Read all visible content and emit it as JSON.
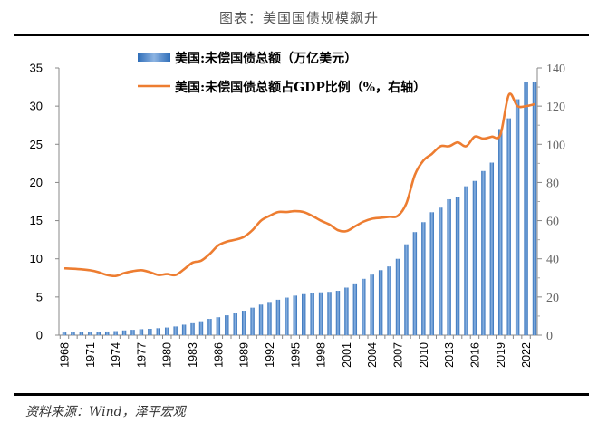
{
  "title": "图表：美国国债规模飙升",
  "source": "资料来源：Wind，泽平宏观",
  "chart_data": {
    "type": "bar+line",
    "x": [
      1968,
      1969,
      1970,
      1971,
      1972,
      1973,
      1974,
      1975,
      1976,
      1977,
      1978,
      1979,
      1980,
      1981,
      1982,
      1983,
      1984,
      1985,
      1986,
      1987,
      1988,
      1989,
      1990,
      1991,
      1992,
      1993,
      1994,
      1995,
      1996,
      1997,
      1998,
      1999,
      2000,
      2001,
      2002,
      2003,
      2004,
      2005,
      2006,
      2007,
      2008,
      2009,
      2010,
      2011,
      2012,
      2013,
      2014,
      2015,
      2016,
      2017,
      2018,
      2019,
      2020,
      2021,
      2022,
      2023
    ],
    "x_tick_labels": [
      "1968",
      "1971",
      "1974",
      "1977",
      "1980",
      "1983",
      "1986",
      "1989",
      "1992",
      "1995",
      "1998",
      "2001",
      "2004",
      "2007",
      "2010",
      "2013",
      "2016",
      "2019",
      "2022"
    ],
    "series": [
      {
        "name": "美国:未偿国债总额（万亿美元）",
        "type": "bar",
        "axis": "left",
        "color": "#3A7BC8",
        "values": [
          0.35,
          0.37,
          0.4,
          0.43,
          0.46,
          0.48,
          0.53,
          0.62,
          0.7,
          0.78,
          0.83,
          0.91,
          1.0,
          1.14,
          1.37,
          1.56,
          1.82,
          2.13,
          2.35,
          2.6,
          2.87,
          3.2,
          3.6,
          4.0,
          4.35,
          4.64,
          4.92,
          5.18,
          5.37,
          5.48,
          5.61,
          5.67,
          5.81,
          6.23,
          6.78,
          7.38,
          7.93,
          8.51,
          9.0,
          10.0,
          11.9,
          13.5,
          14.8,
          16.1,
          16.7,
          17.8,
          18.1,
          19.5,
          20.2,
          21.5,
          22.6,
          27.0,
          28.4,
          30.9,
          33.2,
          33.2
        ]
      },
      {
        "name": "美国:未偿国债总额占GDP比例（%，右轴）",
        "type": "line",
        "axis": "right",
        "color": "#ED7D31",
        "values": [
          35,
          34.8,
          34.5,
          34,
          33,
          31.5,
          31,
          32.5,
          33.5,
          34,
          33,
          31.5,
          32,
          31.5,
          34.5,
          38,
          39,
          42.5,
          47,
          49,
          50,
          51.5,
          55,
          60,
          62.5,
          64.5,
          64.5,
          65,
          64.5,
          62.5,
          60,
          58,
          55,
          54.5,
          57,
          59.5,
          61,
          61.5,
          62,
          62.5,
          69,
          84,
          91.5,
          95,
          99,
          99,
          101,
          99,
          104,
          103,
          104,
          105,
          126,
          120,
          120,
          121
        ]
      }
    ],
    "ylim_left": [
      0,
      35
    ],
    "yticks_left": [
      "0",
      "5",
      "10",
      "15",
      "20",
      "25",
      "30",
      "35"
    ],
    "ylim_right": [
      0,
      140
    ],
    "yticks_right": [
      "0",
      "20",
      "40",
      "60",
      "80",
      "100",
      "120",
      "140"
    ],
    "legend": "top",
    "grid": false
  }
}
